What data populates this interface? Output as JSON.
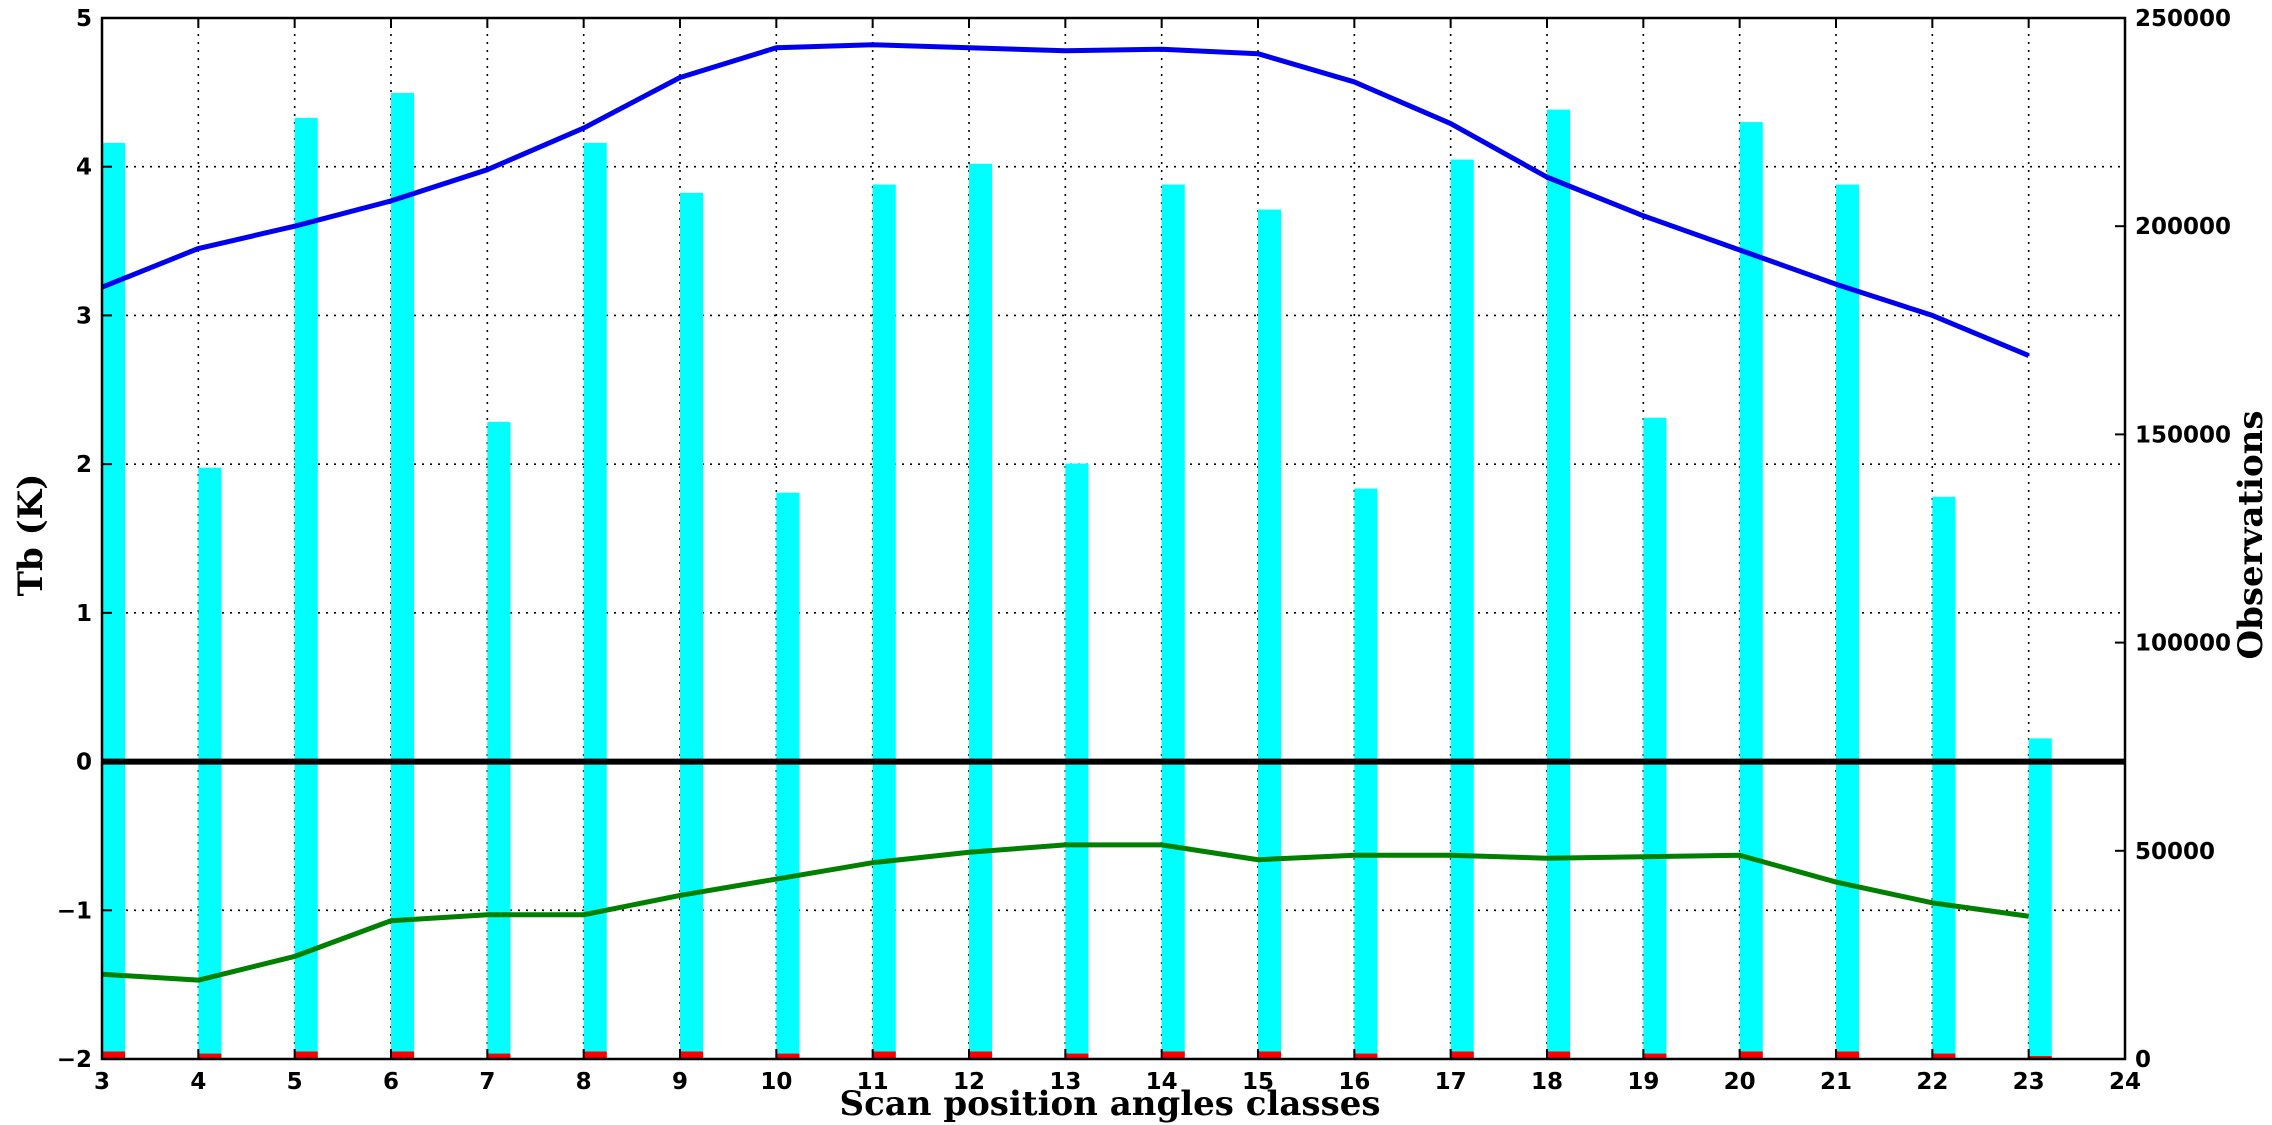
{
  "chart_data": {
    "type": "bar",
    "title": "",
    "xlabel": "Scan position angles classes",
    "ylabel_left": "Tb (K)",
    "ylabel_right": "Observations",
    "xlim": [
      3,
      24
    ],
    "ylim_left": [
      -2,
      5
    ],
    "ylim_right": [
      0,
      250000
    ],
    "grid": true,
    "x_ticks": [
      3,
      4,
      5,
      6,
      7,
      8,
      9,
      10,
      11,
      12,
      13,
      14,
      15,
      16,
      17,
      18,
      19,
      20,
      21,
      22,
      23,
      24
    ],
    "y_left_ticks": [
      -2,
      -1,
      0,
      1,
      2,
      3,
      4,
      5
    ],
    "y_left_tick_labels": [
      "−2",
      "−1",
      "0",
      "1",
      "2",
      "3",
      "4",
      "5"
    ],
    "y_right_ticks": [
      0,
      50000,
      100000,
      150000,
      200000,
      250000
    ],
    "y_right_tick_labels": [
      "0",
      "50000",
      "100000",
      "150000",
      "200000",
      "250000"
    ],
    "bars_observations": {
      "axis": "right",
      "color": "#00ffff",
      "x": [
        3,
        4,
        5,
        6,
        7,
        8,
        9,
        10,
        11,
        12,
        13,
        14,
        15,
        16,
        17,
        18,
        19,
        20,
        21,
        22,
        23
      ],
      "values": [
        220000,
        142000,
        226000,
        232000,
        153000,
        220000,
        208000,
        136000,
        210000,
        215000,
        143000,
        210000,
        204000,
        137000,
        216000,
        228000,
        154000,
        225000,
        210000,
        135000,
        77000
      ]
    },
    "bars_small": {
      "axis": "right",
      "color": "#ff0000",
      "x": [
        3,
        4,
        5,
        6,
        7,
        8,
        9,
        10,
        11,
        12,
        13,
        14,
        15,
        16,
        17,
        18,
        19,
        20,
        21,
        22,
        23
      ],
      "values": [
        1800,
        1300,
        1800,
        1800,
        1300,
        1800,
        1800,
        1300,
        1800,
        1800,
        1300,
        1800,
        1800,
        1300,
        1800,
        1800,
        1300,
        1800,
        1800,
        1300,
        700
      ]
    },
    "series": [
      {
        "color": "#0000ee",
        "axis": "left",
        "x": [
          3,
          4,
          5,
          6,
          7,
          8,
          9,
          10,
          11,
          12,
          13,
          14,
          15,
          16,
          17,
          18,
          19,
          20,
          21,
          22,
          23
        ],
        "values": [
          3.19,
          3.45,
          3.6,
          3.77,
          3.98,
          4.26,
          4.6,
          4.8,
          4.82,
          4.8,
          4.78,
          4.79,
          4.76,
          4.57,
          4.29,
          3.93,
          3.67,
          3.44,
          3.21,
          3.0,
          2.73
        ]
      },
      {
        "color": "#007f00",
        "axis": "left",
        "x": [
          3,
          4,
          5,
          6,
          7,
          8,
          9,
          10,
          11,
          12,
          13,
          14,
          15,
          16,
          17,
          18,
          19,
          20,
          21,
          22,
          23
        ],
        "values": [
          -1.43,
          -1.47,
          -1.31,
          -1.07,
          -1.03,
          -1.03,
          -0.9,
          -0.79,
          -0.68,
          -0.61,
          -0.56,
          -0.56,
          -0.66,
          -0.63,
          -0.63,
          -0.65,
          -0.64,
          -0.63,
          -0.81,
          -0.95,
          -1.04
        ]
      }
    ],
    "reference_line": {
      "axis": "left",
      "y": 0,
      "color": "#000000"
    }
  }
}
